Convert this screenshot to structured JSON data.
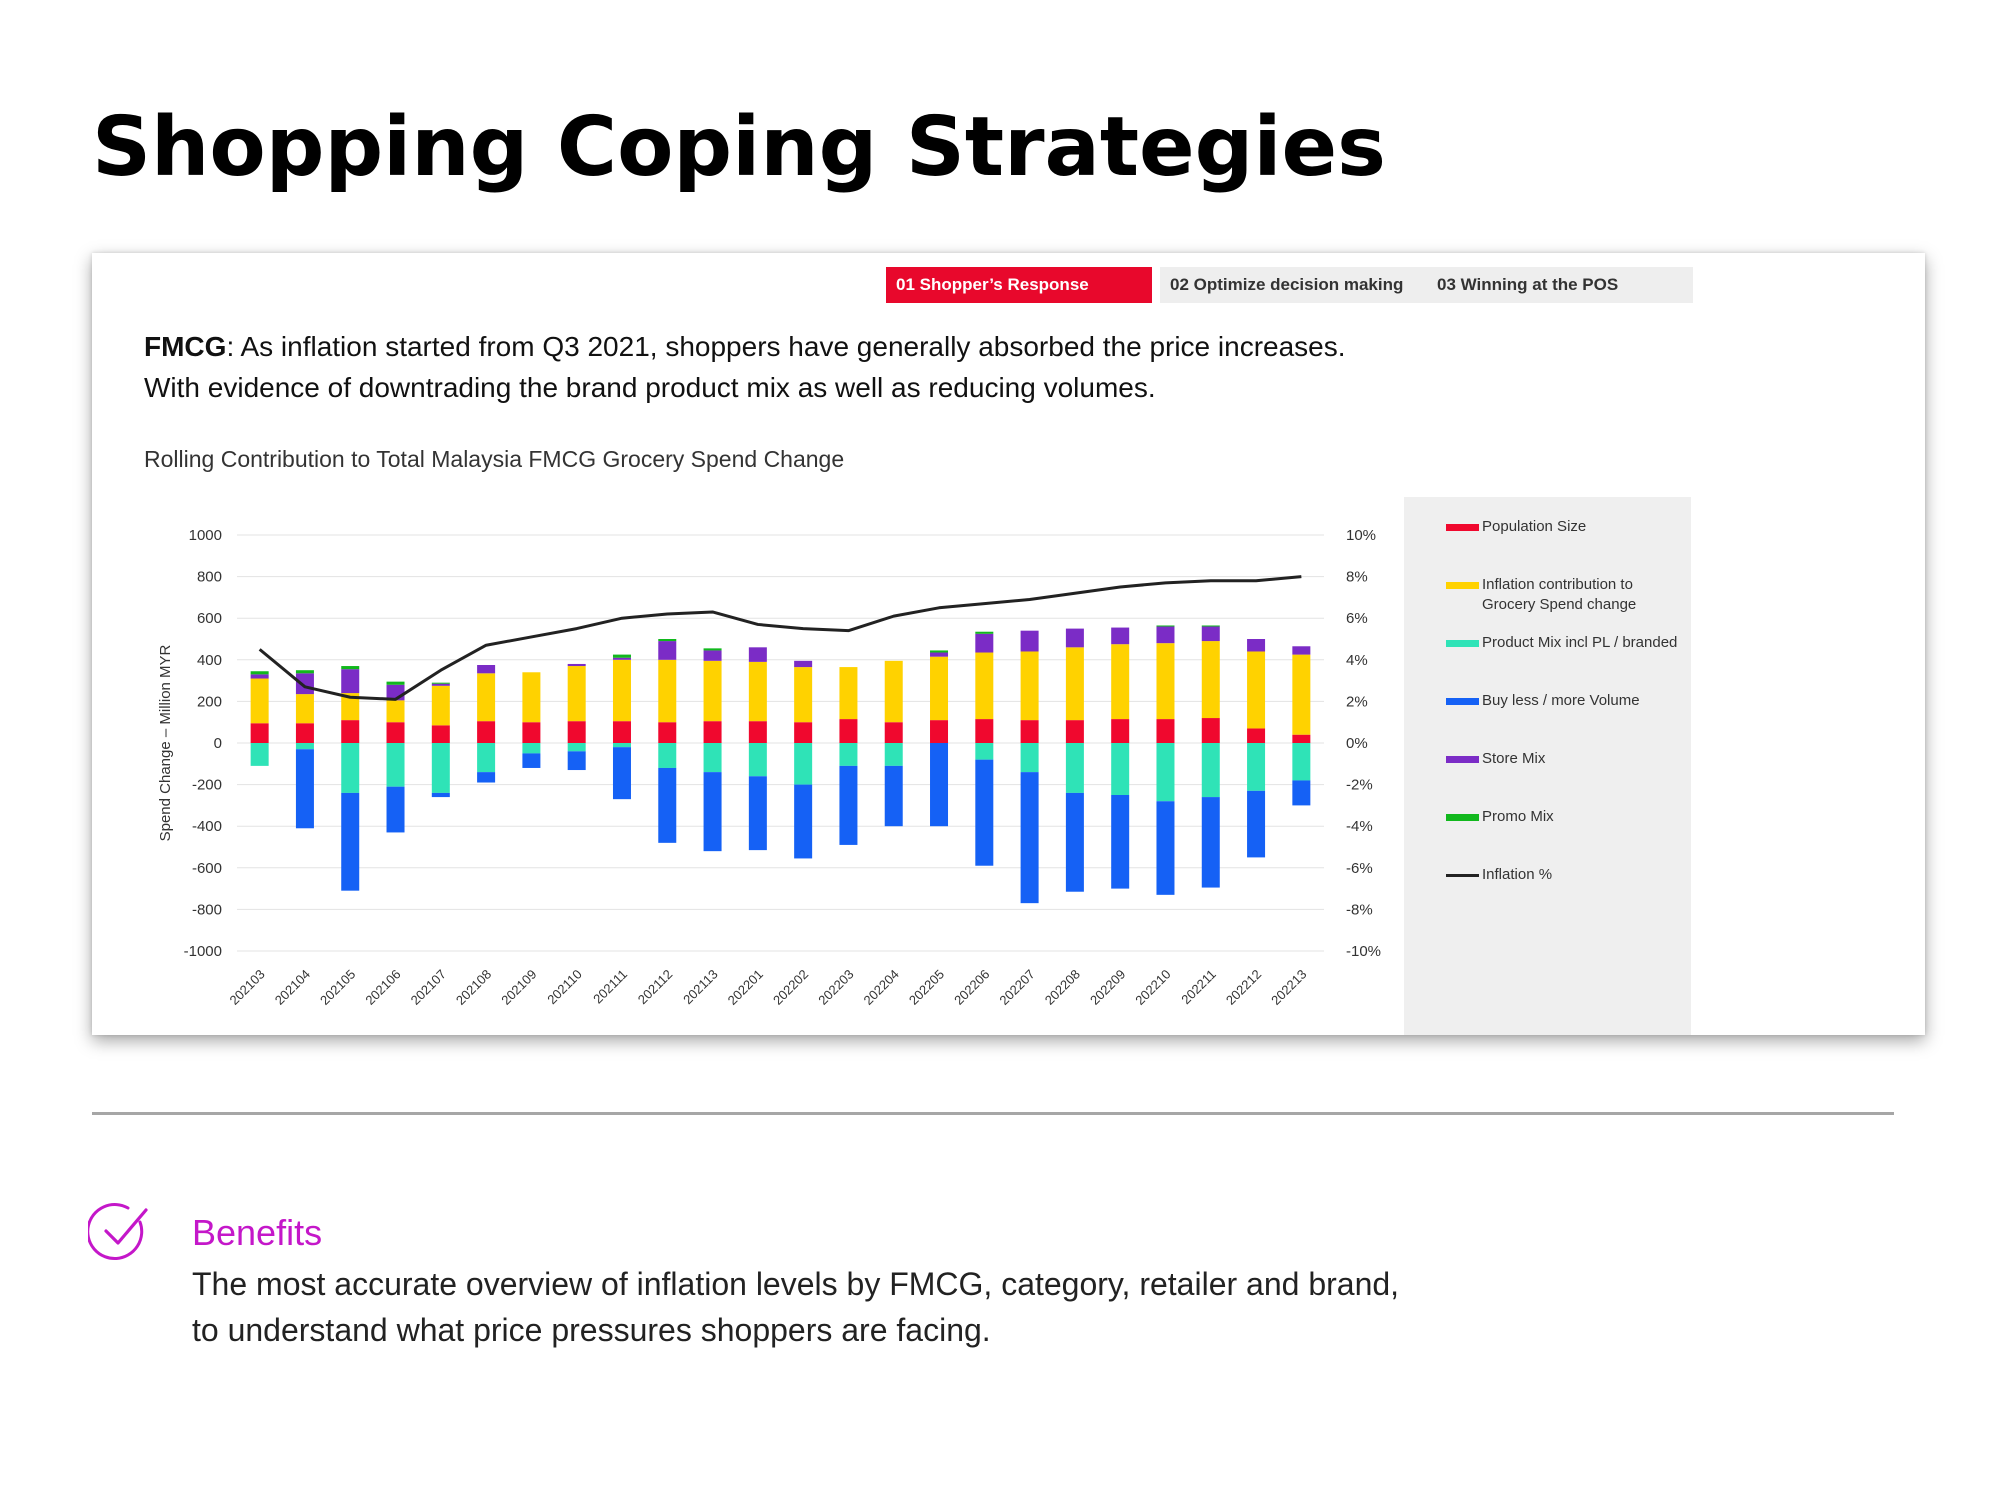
{
  "page_title": "Shopping Coping Strategies",
  "tabs": [
    {
      "label": "01 Shopper’s Response",
      "active": true
    },
    {
      "label": "02 Optimize decision making",
      "active": false
    },
    {
      "label": "03 Winning at the POS",
      "active": false
    }
  ],
  "headline": {
    "bold": "FMCG",
    "line1": ": As inflation started from Q3 2021, shoppers have generally absorbed the price increases.",
    "line2": "With evidence of downtrading the brand product mix as well as reducing volumes."
  },
  "benefits": {
    "title": "Benefits",
    "line1": "The most accurate overview of inflation levels by FMCG, category, retailer and brand,",
    "line2": "to understand what price pressures shoppers are facing."
  },
  "colors": {
    "accent": "#e8082c",
    "benefits": "#c417c9",
    "population": "#f0082e",
    "inflation_contrib": "#ffd200",
    "product_mix": "#2fe3b7",
    "volume": "#1561f5",
    "store_mix": "#7b2cc6",
    "promo_mix": "#11b81d",
    "inflation_line": "#222222"
  },
  "chart_data": {
    "type": "bar",
    "stacked": true,
    "title": "Rolling Contribution to Total Malaysia FMCG Grocery Spend Change",
    "ylabel": "Spend Change – Million MYR",
    "ylim": [
      -1000,
      1000
    ],
    "y_ticks": [
      1000,
      800,
      600,
      400,
      200,
      0,
      -200,
      -400,
      -600,
      -800,
      -1000
    ],
    "y2lim": [
      -10,
      10
    ],
    "y2_ticks": [
      "10%",
      "8%",
      "6%",
      "4%",
      "2%",
      "0%",
      "-2%",
      "-4%",
      "-6%",
      "-8%",
      "-10%"
    ],
    "grid": true,
    "legend_position": "right",
    "categories": [
      "202103",
      "202104",
      "202105",
      "202106",
      "202107",
      "202108",
      "202109",
      "202110",
      "202111",
      "202112",
      "202113",
      "202201",
      "202202",
      "202203",
      "202204",
      "202205",
      "202206",
      "202207",
      "202208",
      "202209",
      "202210",
      "202211",
      "202212",
      "202213"
    ],
    "series": [
      {
        "name": "Population Size",
        "color": "#f0082e",
        "values": [
          95,
          95,
          110,
          100,
          85,
          105,
          100,
          105,
          105,
          100,
          105,
          105,
          100,
          115,
          100,
          110,
          115,
          110,
          110,
          115,
          115,
          120,
          70,
          40
        ]
      },
      {
        "name": "Inflation contribution to Grocery Spend change",
        "color": "#ffd200",
        "values": [
          215,
          140,
          130,
          105,
          190,
          230,
          240,
          265,
          295,
          300,
          290,
          285,
          265,
          250,
          295,
          305,
          320,
          330,
          350,
          360,
          365,
          370,
          370,
          385
        ]
      },
      {
        "name": "Product Mix incl PL / branded",
        "color": "#2fe3b7",
        "values": [
          -110,
          -30,
          -240,
          -210,
          -240,
          -140,
          -50,
          -40,
          -20,
          -120,
          -140,
          -160,
          -200,
          -110,
          -110,
          0,
          -80,
          -140,
          -240,
          -250,
          -280,
          -260,
          -230,
          -180
        ]
      },
      {
        "name": "Buy less / more Volume",
        "color": "#1561f5",
        "values": [
          0,
          -380,
          -470,
          -220,
          -20,
          -50,
          -70,
          -90,
          -250,
          -360,
          -380,
          -355,
          -355,
          -380,
          -290,
          -400,
          -510,
          -630,
          -475,
          -450,
          -450,
          -435,
          -320,
          -120
        ]
      },
      {
        "name": "Store Mix",
        "color": "#7b2cc6",
        "values": [
          20,
          100,
          115,
          75,
          10,
          40,
          0,
          10,
          10,
          90,
          50,
          70,
          30,
          0,
          0,
          20,
          90,
          100,
          90,
          80,
          80,
          70,
          60,
          40
        ]
      },
      {
        "name": "Promo Mix",
        "color": "#11b81d",
        "values": [
          15,
          15,
          15,
          15,
          5,
          0,
          0,
          0,
          15,
          10,
          10,
          0,
          0,
          0,
          0,
          10,
          10,
          0,
          0,
          0,
          5,
          5,
          0,
          0
        ]
      }
    ],
    "line_series": {
      "name": "Inflation %",
      "color": "#222222",
      "axis": "right",
      "values": [
        4.5,
        2.7,
        2.2,
        2.1,
        3.5,
        4.7,
        5.1,
        5.5,
        6.0,
        6.2,
        6.3,
        5.7,
        5.5,
        5.4,
        6.1,
        6.5,
        6.7,
        6.9,
        7.2,
        7.5,
        7.7,
        7.8,
        7.8,
        8.0
      ]
    }
  }
}
